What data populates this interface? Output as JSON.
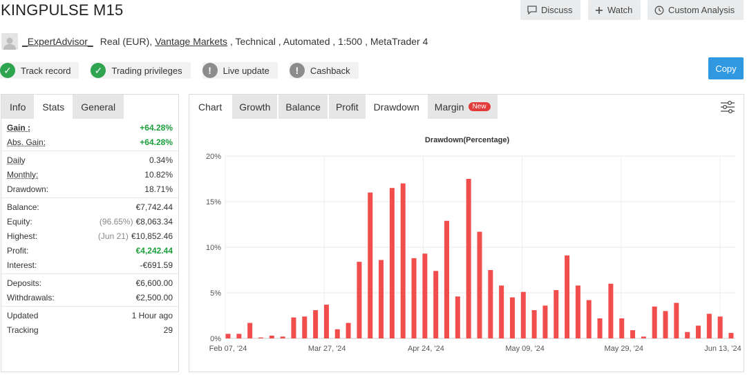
{
  "title": "KINGPULSE M15",
  "header_buttons": {
    "discuss": "Discuss",
    "watch": "Watch",
    "custom_analysis": "Custom Analysis",
    "copy": "Copy"
  },
  "account": {
    "user": "_ExpertAdvisor_",
    "type": "Real (EUR),",
    "broker": "Vantage Markets",
    "rest": ", Technical , Automated , 1:500 , MetaTrader 4"
  },
  "badges": [
    {
      "label": "Track record",
      "status": "ok"
    },
    {
      "label": "Trading privileges",
      "status": "ok"
    },
    {
      "label": "Live update",
      "status": "warn"
    },
    {
      "label": "Cashback",
      "status": "warn"
    }
  ],
  "left_tabs": {
    "info": "Info",
    "stats": "Stats",
    "general": "General"
  },
  "stats": {
    "gain": {
      "label": "Gain :",
      "value": "+64.28%"
    },
    "abs_gain": {
      "label": "Abs. Gain:",
      "value": "+64.28%"
    },
    "daily": {
      "label": "Daily",
      "value": "0.34%"
    },
    "monthly": {
      "label": "Monthly:",
      "value": "10.82%"
    },
    "drawdown": {
      "label": "Drawdown:",
      "value": "18.71%"
    },
    "balance": {
      "label": "Balance:",
      "value": "€7,742.44"
    },
    "equity": {
      "label": "Equity:",
      "note": "(96.65%)",
      "value": "€8,063.34"
    },
    "highest": {
      "label": "Highest:",
      "note": "(Jun 21)",
      "value": "€10,852.46"
    },
    "profit": {
      "label": "Profit:",
      "value": "€4,242.44"
    },
    "interest": {
      "label": "Interest:",
      "value": "-€691.59"
    },
    "deposits": {
      "label": "Deposits:",
      "value": "€6,600.00"
    },
    "withdrawals": {
      "label": "Withdrawals:",
      "value": "€2,500.00"
    },
    "updated": {
      "label": "Updated",
      "value": "1 Hour ago"
    },
    "tracking": {
      "label": "Tracking",
      "value": "29"
    }
  },
  "chart_tabs": {
    "chart": "Chart",
    "growth": "Growth",
    "balance": "Balance",
    "profit": "Profit",
    "drawdown": "Drawdown",
    "margin": "Margin",
    "new_badge": "New"
  },
  "colors": {
    "bar": "#f24d4d",
    "copy_button": "#2f98e0",
    "green": "#1a9f3a"
  },
  "chart_data": {
    "type": "bar",
    "title": "Drawdown(Percentage)",
    "ylim": [
      0,
      20
    ],
    "yticks": [
      "0%",
      "5%",
      "10%",
      "15%",
      "20%"
    ],
    "xtick_labels": [
      "Feb 07, '24",
      "Mar 27, '24",
      "Apr 24, '24",
      "May 09, '24",
      "May 29, '24",
      "Jun 13, '24"
    ],
    "grid": true,
    "values": [
      0.5,
      0.5,
      1.7,
      0.1,
      0.3,
      0.2,
      2.3,
      2.4,
      3.1,
      3.7,
      1.0,
      1.7,
      8.4,
      16.0,
      8.6,
      16.5,
      17.0,
      8.8,
      9.3,
      7.4,
      12.9,
      4.6,
      17.5,
      11.7,
      7.5,
      5.8,
      4.5,
      5.1,
      3.1,
      3.6,
      5.3,
      9.1,
      5.8,
      4.2,
      2.2,
      6.0,
      2.2,
      0.9,
      0.2,
      3.5,
      3.0,
      3.9,
      0.7,
      1.4,
      2.7,
      2.4,
      0.6
    ]
  }
}
